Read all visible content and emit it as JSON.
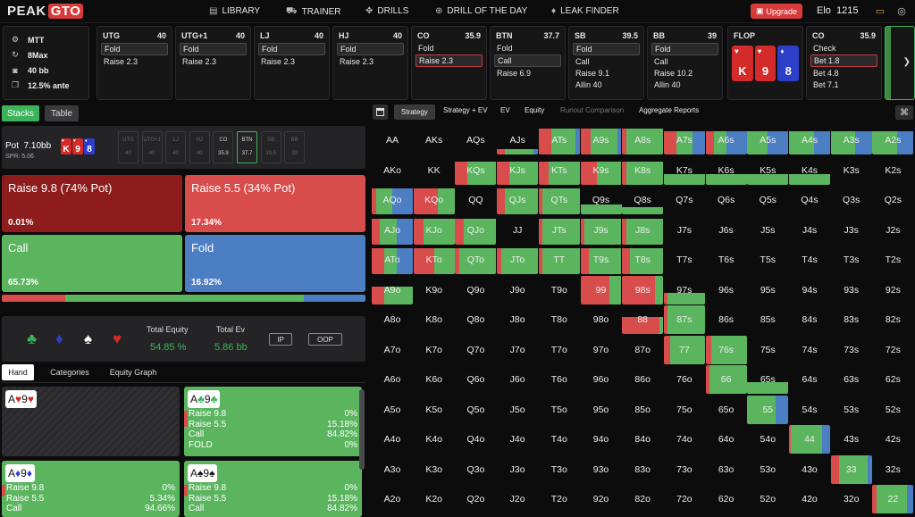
{
  "app": {
    "logo_a": "PEAK",
    "logo_b": "GTO"
  },
  "nav": [
    {
      "label": "LIBRARY",
      "icon": "book-icon"
    },
    {
      "label": "TRAINER",
      "icon": "car-icon"
    },
    {
      "label": "DRILLS",
      "icon": "drills-icon"
    },
    {
      "label": "DRILL OF THE DAY",
      "icon": "plus-circle-icon"
    },
    {
      "label": "LEAK FINDER",
      "icon": "drop-icon"
    }
  ],
  "upgrade": "Upgrade",
  "elo": {
    "label": "Elo",
    "value": "1215"
  },
  "info": {
    "format": "MTT",
    "players": "8Max",
    "stack": "40 bb",
    "ante": "12.5% ante"
  },
  "positions": [
    {
      "name": "UTG",
      "stack": "40",
      "actions": [
        "Fold",
        "Raise 2.3"
      ],
      "hl": 0,
      "sel": -1
    },
    {
      "name": "UTG+1",
      "stack": "40",
      "actions": [
        "Fold",
        "Raise 2.3"
      ],
      "hl": 0,
      "sel": -1
    },
    {
      "name": "LJ",
      "stack": "40",
      "actions": [
        "Fold",
        "Raise 2.3"
      ],
      "hl": 0,
      "sel": -1
    },
    {
      "name": "HJ",
      "stack": "40",
      "actions": [
        "Fold",
        "Raise 2.3"
      ],
      "hl": 0,
      "sel": -1
    },
    {
      "name": "CO",
      "stack": "35.9",
      "actions": [
        "Fold",
        "Raise 2.3"
      ],
      "hl": -1,
      "sel": 1
    },
    {
      "name": "BTN",
      "stack": "37.7",
      "actions": [
        "Fold",
        "Call",
        "Raise 6.9"
      ],
      "hl": 1,
      "sel": -1
    },
    {
      "name": "SB",
      "stack": "39.5",
      "actions": [
        "Fold",
        "Call",
        "Raise 9.1",
        "Allin 40"
      ],
      "hl": 0,
      "sel": -1
    },
    {
      "name": "BB",
      "stack": "39",
      "actions": [
        "Fold",
        "Call",
        "Raise 10.2",
        "Allin 40"
      ],
      "hl": 0,
      "sel": -1
    }
  ],
  "flop": {
    "label": "FLOP",
    "cards": [
      {
        "rank": "K",
        "suit": "♥",
        "color": "#d42a2a"
      },
      {
        "rank": "9",
        "suit": "♥",
        "color": "#d42a2a"
      },
      {
        "rank": "8",
        "suit": "♦",
        "color": "#2c3fc9"
      }
    ]
  },
  "co_card": {
    "name": "CO",
    "stack": "35.9",
    "actions": [
      "Check",
      "Bet 1.8",
      "Bet 4.8",
      "Bet 7.1"
    ]
  },
  "left_tabs": {
    "stacks": "Stacks",
    "table": "Table"
  },
  "pot": {
    "label": "Pot",
    "value": "7.10bb",
    "spr": "SPR: 5.06"
  },
  "seats": [
    {
      "n": "UTG",
      "v": "40"
    },
    {
      "n": "UTG+1",
      "v": "40"
    },
    {
      "n": "LJ",
      "v": "40"
    },
    {
      "n": "HJ",
      "v": "40"
    },
    {
      "n": "CO",
      "v": "35.9"
    },
    {
      "n": "BTN",
      "v": "37.7"
    },
    {
      "n": "SB",
      "v": "39.5"
    },
    {
      "n": "BB",
      "v": "39"
    }
  ],
  "strategy_actions": [
    {
      "label": "Raise 9.8 (74% Pot)",
      "pct": "0.01%",
      "color": "#8e1c1c"
    },
    {
      "label": "Raise 5.5 (34% Pot)",
      "pct": "17.34%",
      "color": "#d94c4c"
    },
    {
      "label": "Call",
      "pct": "65.73%",
      "color": "#5bb55f"
    },
    {
      "label": "Fold",
      "pct": "16.92%",
      "color": "#4c7ec4"
    }
  ],
  "freq": [
    {
      "v": 17.35,
      "c": "#d94c4c"
    },
    {
      "v": 65.73,
      "c": "#5bb55f"
    },
    {
      "v": 16.92,
      "c": "#4c7ec4"
    }
  ],
  "equity": {
    "total_equity_label": "Total Equity",
    "total_equity": "54.85 %",
    "total_ev_label": "Total Ev",
    "total_ev": "5.86 bb",
    "ip": "IP",
    "oop": "OOP",
    "suits": [
      {
        "g": "♣",
        "c": "#3cb35a"
      },
      {
        "g": "♦",
        "c": "#2c3fc9"
      },
      {
        "g": "♠",
        "c": "#ffffff"
      },
      {
        "g": "♥",
        "c": "#d42a2a"
      }
    ]
  },
  "sub_tabs": [
    "Hand",
    "Categories",
    "Equity Graph"
  ],
  "matrix_tabs": [
    "Strategy",
    "Strategy + EV",
    "EV",
    "Equity",
    "Runout Comparison",
    "Aggregate Reports"
  ],
  "hands": [
    {
      "rank1": "A",
      "suit1": "♥",
      "rank2": "9",
      "suit2": "♥",
      "sc": "#d42a2a",
      "bg": "#2a2a2c",
      "rows": []
    },
    {
      "rank1": "A",
      "suit1": "♣",
      "rank2": "9",
      "suit2": "♣",
      "sc": "#3cb35a",
      "bg": "#5bb55f",
      "rows": [
        [
          "Raise 9.8",
          "0%"
        ],
        [
          "Raise 5.5",
          "15.18%"
        ],
        [
          "Call",
          "84.82%"
        ],
        [
          "FOLD",
          "0%"
        ]
      ]
    },
    {
      "rank1": "A",
      "suit1": "♦",
      "rank2": "9",
      "suit2": "♦",
      "sc": "#2c3fc9",
      "bg": "#5bb55f",
      "rows": [
        [
          "Raise 9.8",
          "0%"
        ],
        [
          "Raise 5.5",
          "5.34%"
        ],
        [
          "Call",
          "94.66%"
        ]
      ]
    },
    {
      "rank1": "A",
      "suit1": "♠",
      "rank2": "9",
      "suit2": "♠",
      "sc": "#111111",
      "bg": "#5bb55f",
      "rows": [
        [
          "Raise 9.8",
          "0%"
        ],
        [
          "Raise 5.5",
          "15.18%"
        ],
        [
          "Call",
          "84.82%"
        ]
      ]
    }
  ],
  "matrix": {
    "ranks": [
      "A",
      "K",
      "Q",
      "J",
      "T",
      "9",
      "8",
      "7",
      "6",
      "5",
      "4",
      "3",
      "2"
    ],
    "cells": [
      [
        "",
        "",
        "",
        "rg,0.2,20,70,10",
        "rg,0.9,30,60,10",
        "rg,0.9,25,65,10",
        "g,0.9,10,90,0",
        "rgb,0.8,30,40,30",
        "rgb,0.8,20,30,50",
        "gb,0.8,0,50,50",
        "gb,0.8,0,60,40",
        "gb,0.8,0,60,40",
        "gb,0.8,0,60,40"
      ],
      [
        "",
        "",
        "rg,0.8,30,70,0",
        "rg,0.8,30,70,0",
        "rg,0.8,25,75,0",
        "rg,0.8,40,60,0",
        "g,0.8,10,90,0",
        "g,0.35,0,100,0",
        "g,0.35,0,100,0",
        "g,0.35,0,100,0",
        "g,0.35,0,100,0",
        "",
        ""
      ],
      [
        "rgb,0.9,10,40,50",
        "rg,0.9,60,40,0",
        "",
        "rg,0.9,20,80,0",
        "g,0.9,10,90,0",
        "g,0.35,0,100,0",
        "g,0.25,0,100,0",
        "",
        "",
        "",
        "",
        "",
        ""
      ],
      [
        "rgb,0.9,20,40,40",
        "rg,0.9,25,75,0",
        "rg,0.9,20,80,0",
        "",
        "g,0.9,10,90,0",
        "g,0.9,10,90,0",
        "g,0.9,10,90,0",
        "",
        "",
        "",
        "",
        "",
        ""
      ],
      [
        "rgb,0.9,30,30,40",
        "rg,0.9,50,50,0",
        "g,0.9,10,90,0",
        "g,0.9,10,90,0",
        "g,0.9,10,90,0",
        "g,0.9,20,80,0",
        "g,0.9,20,80,0",
        "",
        "",
        "",
        "",
        "",
        ""
      ],
      [
        "rg,0.6,30,70,0",
        "",
        "",
        "",
        "",
        "rg,1,70,30,0",
        "rg,1,80,20,0",
        "g,0.4,10,90,0",
        "",
        "",
        "",
        "",
        ""
      ],
      [
        "",
        "",
        "",
        "",
        "",
        "",
        "rg,0.6,90,10,0",
        "g,1,10,90,0",
        "",
        "",
        "",
        "",
        ""
      ],
      [
        "",
        "",
        "",
        "",
        "",
        "",
        "",
        "g,1,15,85,0",
        "g,1,15,85,0",
        "",
        "",
        "",
        ""
      ],
      [
        "",
        "",
        "",
        "",
        "",
        "",
        "",
        "",
        "g,1,10,90,0",
        "g,0.4,0,100,0",
        "",
        "",
        ""
      ],
      [
        "",
        "",
        "",
        "",
        "",
        "",
        "",
        "",
        "",
        "gb,1,0,70,30",
        "",
        "",
        ""
      ],
      [
        "",
        "",
        "",
        "",
        "",
        "",
        "",
        "",
        "",
        "",
        "gb,1,5,75,20",
        "",
        ""
      ],
      [
        "",
        "",
        "",
        "",
        "",
        "",
        "",
        "",
        "",
        "",
        "",
        "rg,1,20,70,10",
        ""
      ],
      [
        "",
        "",
        "",
        "",
        "",
        "",
        "",
        "",
        "",
        "",
        "",
        "",
        "gb,1,10,75,15"
      ]
    ]
  },
  "colors": {
    "raise_big": "#8e1c1c",
    "raise": "#d94c4c",
    "call": "#5bb55f",
    "fold": "#4c7ec4",
    "accent": "#d93a3a"
  }
}
